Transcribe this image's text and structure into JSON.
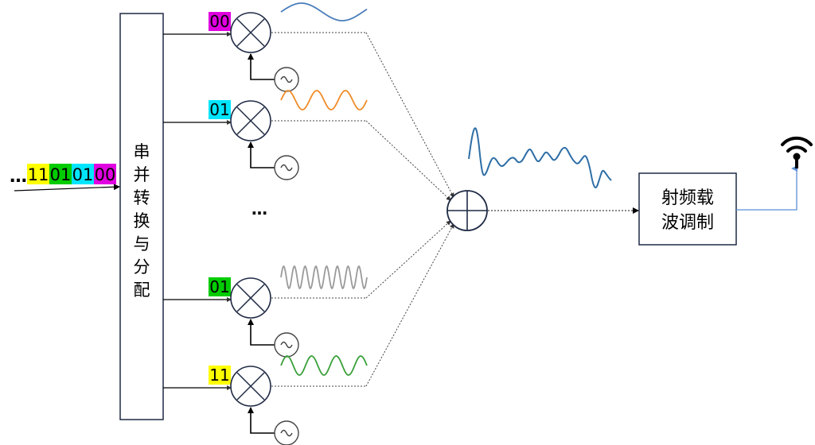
{
  "input_stream": {
    "ellipsis": "…",
    "bits": [
      {
        "text": "11",
        "color": "#ffff00"
      },
      {
        "text": "01",
        "color": "#00cc00"
      },
      {
        "text": "01",
        "color": "#00e5ff"
      },
      {
        "text": "00",
        "color": "#e000e0"
      }
    ]
  },
  "sp_block": {
    "label_chars": [
      "串",
      "并",
      "转",
      "换",
      "与",
      "分",
      "配"
    ]
  },
  "branches": [
    {
      "code": "00",
      "code_color": "#e000e0",
      "wave_color": "#4a7ebb"
    },
    {
      "code": "01",
      "code_color": "#00e5ff",
      "wave_color": "#f08c28"
    },
    {
      "code": "01",
      "code_color": "#00cc00",
      "wave_color": "#9a9a9a"
    },
    {
      "code": "11",
      "code_color": "#ffff00",
      "wave_color": "#3aa03a"
    }
  ],
  "ellipsis_middle": "…",
  "rf_block": {
    "line1": "射频载",
    "line2": "波调制"
  },
  "colors": {
    "line": "#000000",
    "mixer": "#1f2a44",
    "sum_wave": "#2e6ea6",
    "antenna_feed": "#5b8fd6"
  },
  "icons": {
    "mixer": "multiplier-x-circle-icon",
    "oscillator": "sine-oscillator-icon",
    "adder": "summing-plus-circle-icon",
    "antenna": "antenna-icon"
  }
}
